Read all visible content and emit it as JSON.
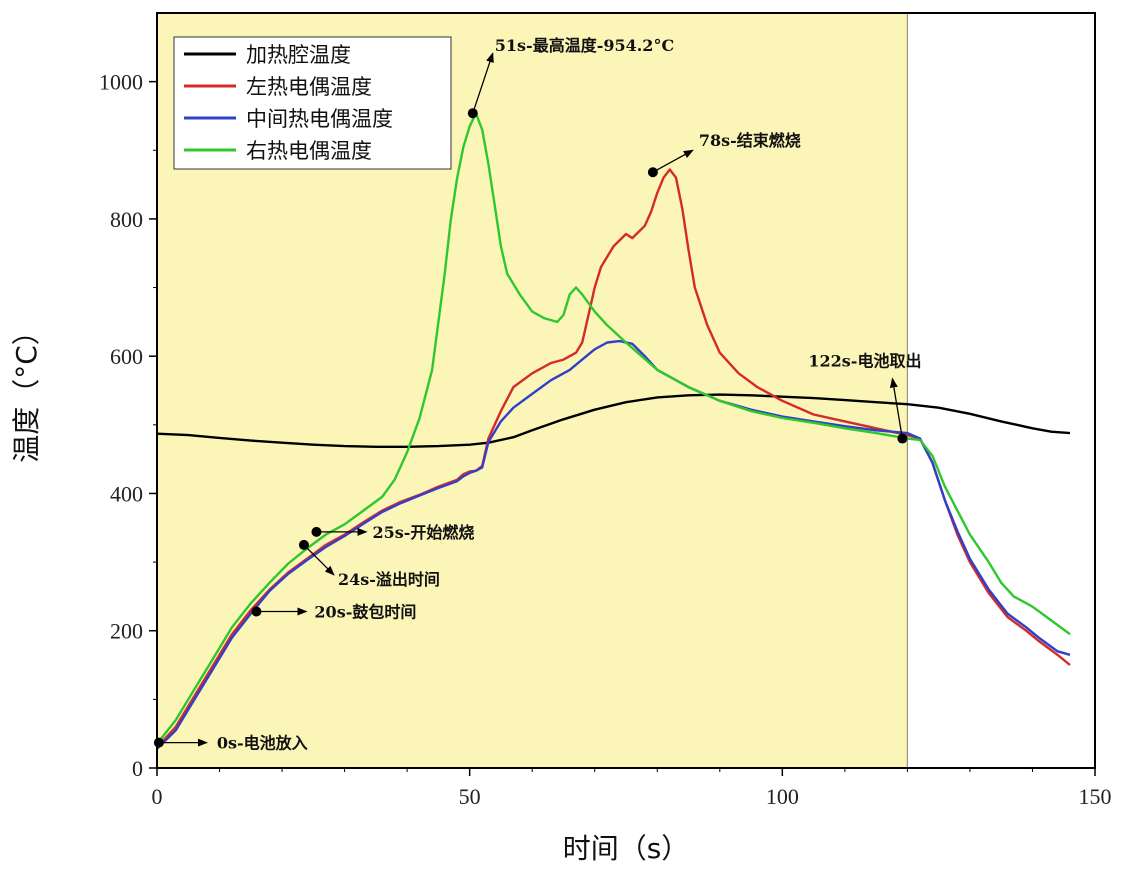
{
  "chart_data": {
    "type": "line",
    "title": "",
    "xlabel": "时间（s）",
    "ylabel": "温度（°C）",
    "xlim": [
      0,
      150
    ],
    "ylim": [
      0,
      1100
    ],
    "xticks": [
      0,
      50,
      100,
      150
    ],
    "yticks": [
      0,
      200,
      400,
      600,
      800,
      1000
    ],
    "shaded_region": {
      "x_from": 0,
      "x_to": 120,
      "color": "#fbf5b8"
    },
    "legend_position": "top-left",
    "series": [
      {
        "name": "加热腔温度",
        "color": "#000000",
        "points": [
          [
            0,
            487
          ],
          [
            5,
            485
          ],
          [
            10,
            481
          ],
          [
            15,
            477
          ],
          [
            20,
            474
          ],
          [
            25,
            471
          ],
          [
            30,
            469
          ],
          [
            35,
            468
          ],
          [
            40,
            468
          ],
          [
            45,
            469
          ],
          [
            50,
            471
          ],
          [
            53,
            474
          ],
          [
            57,
            482
          ],
          [
            60,
            492
          ],
          [
            65,
            508
          ],
          [
            70,
            522
          ],
          [
            75,
            533
          ],
          [
            80,
            540
          ],
          [
            85,
            543
          ],
          [
            90,
            544
          ],
          [
            95,
            543
          ],
          [
            100,
            541
          ],
          [
            105,
            539
          ],
          [
            110,
            536
          ],
          [
            115,
            533
          ],
          [
            120,
            530
          ],
          [
            125,
            525
          ],
          [
            130,
            516
          ],
          [
            135,
            505
          ],
          [
            140,
            495
          ],
          [
            143,
            490
          ],
          [
            146,
            488
          ]
        ]
      },
      {
        "name": "左热电偶温度",
        "color": "#d42a2a",
        "points": [
          [
            0,
            30
          ],
          [
            3,
            60
          ],
          [
            6,
            105
          ],
          [
            9,
            150
          ],
          [
            12,
            195
          ],
          [
            15,
            230
          ],
          [
            18,
            260
          ],
          [
            21,
            285
          ],
          [
            24,
            305
          ],
          [
            27,
            325
          ],
          [
            30,
            340
          ],
          [
            33,
            358
          ],
          [
            36,
            375
          ],
          [
            39,
            388
          ],
          [
            42,
            398
          ],
          [
            45,
            410
          ],
          [
            48,
            420
          ],
          [
            49,
            428
          ],
          [
            50,
            432
          ],
          [
            51,
            433
          ],
          [
            52,
            440
          ],
          [
            53,
            480
          ],
          [
            55,
            520
          ],
          [
            57,
            555
          ],
          [
            60,
            575
          ],
          [
            63,
            590
          ],
          [
            65,
            595
          ],
          [
            67,
            605
          ],
          [
            68,
            620
          ],
          [
            69,
            660
          ],
          [
            70,
            700
          ],
          [
            71,
            730
          ],
          [
            73,
            760
          ],
          [
            75,
            778
          ],
          [
            76,
            772
          ],
          [
            78,
            790
          ],
          [
            79,
            810
          ],
          [
            80,
            838
          ],
          [
            81,
            860
          ],
          [
            82,
            872
          ],
          [
            83,
            860
          ],
          [
            84,
            815
          ],
          [
            85,
            755
          ],
          [
            86,
            700
          ],
          [
            88,
            645
          ],
          [
            90,
            605
          ],
          [
            93,
            575
          ],
          [
            96,
            555
          ],
          [
            100,
            535
          ],
          [
            105,
            515
          ],
          [
            110,
            505
          ],
          [
            115,
            495
          ],
          [
            120,
            485
          ],
          [
            122,
            480
          ],
          [
            124,
            445
          ],
          [
            126,
            390
          ],
          [
            128,
            340
          ],
          [
            130,
            300
          ],
          [
            133,
            255
          ],
          [
            136,
            220
          ],
          [
            139,
            200
          ],
          [
            141,
            185
          ],
          [
            144,
            165
          ],
          [
            146,
            150
          ]
        ]
      },
      {
        "name": "中间热电偶温度",
        "color": "#3040c8",
        "points": [
          [
            0,
            28
          ],
          [
            3,
            55
          ],
          [
            6,
            100
          ],
          [
            9,
            145
          ],
          [
            12,
            190
          ],
          [
            15,
            225
          ],
          [
            18,
            258
          ],
          [
            21,
            283
          ],
          [
            24,
            303
          ],
          [
            27,
            322
          ],
          [
            30,
            338
          ],
          [
            33,
            356
          ],
          [
            36,
            373
          ],
          [
            39,
            386
          ],
          [
            42,
            397
          ],
          [
            45,
            408
          ],
          [
            48,
            418
          ],
          [
            49,
            425
          ],
          [
            50,
            430
          ],
          [
            51,
            433
          ],
          [
            52,
            438
          ],
          [
            53,
            475
          ],
          [
            55,
            505
          ],
          [
            57,
            525
          ],
          [
            60,
            545
          ],
          [
            63,
            565
          ],
          [
            66,
            580
          ],
          [
            68,
            595
          ],
          [
            70,
            610
          ],
          [
            72,
            620
          ],
          [
            74,
            622
          ],
          [
            76,
            618
          ],
          [
            78,
            600
          ],
          [
            80,
            580
          ],
          [
            85,
            555
          ],
          [
            90,
            535
          ],
          [
            95,
            522
          ],
          [
            100,
            512
          ],
          [
            105,
            505
          ],
          [
            110,
            498
          ],
          [
            115,
            492
          ],
          [
            120,
            488
          ],
          [
            122,
            480
          ],
          [
            124,
            445
          ],
          [
            126,
            390
          ],
          [
            128,
            345
          ],
          [
            130,
            305
          ],
          [
            133,
            260
          ],
          [
            136,
            225
          ],
          [
            139,
            205
          ],
          [
            141,
            190
          ],
          [
            144,
            170
          ],
          [
            146,
            165
          ]
        ]
      },
      {
        "name": "右热电偶温度",
        "color": "#2ec82e",
        "points": [
          [
            0,
            35
          ],
          [
            3,
            70
          ],
          [
            6,
            115
          ],
          [
            9,
            160
          ],
          [
            12,
            205
          ],
          [
            15,
            240
          ],
          [
            18,
            270
          ],
          [
            21,
            298
          ],
          [
            24,
            320
          ],
          [
            27,
            340
          ],
          [
            30,
            355
          ],
          [
            33,
            375
          ],
          [
            36,
            395
          ],
          [
            38,
            420
          ],
          [
            40,
            460
          ],
          [
            42,
            510
          ],
          [
            44,
            580
          ],
          [
            46,
            720
          ],
          [
            47,
            800
          ],
          [
            48,
            860
          ],
          [
            49,
            905
          ],
          [
            50,
            935
          ],
          [
            51,
            954
          ],
          [
            52,
            930
          ],
          [
            53,
            880
          ],
          [
            54,
            820
          ],
          [
            55,
            760
          ],
          [
            56,
            720
          ],
          [
            58,
            690
          ],
          [
            60,
            665
          ],
          [
            62,
            655
          ],
          [
            64,
            650
          ],
          [
            65,
            660
          ],
          [
            66,
            690
          ],
          [
            67,
            700
          ],
          [
            68,
            690
          ],
          [
            70,
            665
          ],
          [
            72,
            645
          ],
          [
            75,
            620
          ],
          [
            80,
            580
          ],
          [
            85,
            555
          ],
          [
            90,
            535
          ],
          [
            95,
            520
          ],
          [
            100,
            510
          ],
          [
            105,
            503
          ],
          [
            110,
            495
          ],
          [
            115,
            488
          ],
          [
            120,
            480
          ],
          [
            122,
            478
          ],
          [
            124,
            455
          ],
          [
            126,
            410
          ],
          [
            128,
            375
          ],
          [
            130,
            340
          ],
          [
            133,
            300
          ],
          [
            135,
            270
          ],
          [
            137,
            250
          ],
          [
            140,
            235
          ],
          [
            143,
            215
          ],
          [
            146,
            195
          ]
        ]
      }
    ],
    "annotations": [
      {
        "text": "51s-最高温度-954.2°C",
        "point": [
          50.5,
          954
        ]
      },
      {
        "text": "78s-结束燃烧",
        "point": [
          79.3,
          868
        ]
      },
      {
        "text": "122s-电池取出",
        "point": [
          119.2,
          480
        ]
      },
      {
        "text": "25s-开始燃烧",
        "point": [
          25.5,
          344
        ]
      },
      {
        "text": "24s-溢出时间",
        "point": [
          23.5,
          325
        ]
      },
      {
        "text": "20s-鼓包时间",
        "point": [
          15.9,
          228
        ]
      },
      {
        "text": "0s-电池放入",
        "point": [
          0.3,
          37
        ]
      }
    ]
  }
}
